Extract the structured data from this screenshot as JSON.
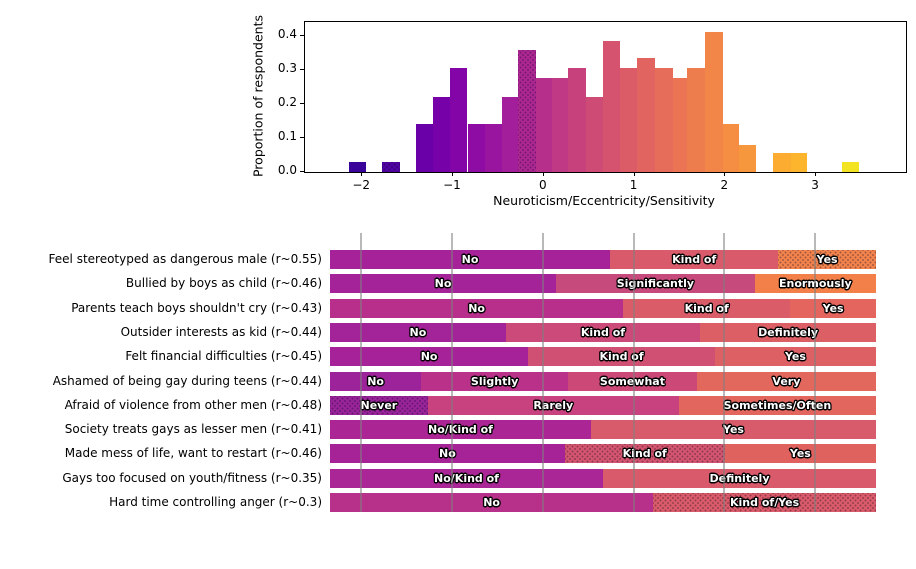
{
  "chart_data": [
    {
      "type": "bar",
      "subtype": "histogram",
      "title": "",
      "xlabel": "Neuroticism/Eccentricity/Sensitivity",
      "ylabel": "Proportion of respondents",
      "xlim": [
        -2.63,
        3.99
      ],
      "ylim": [
        0,
        0.44
      ],
      "grid": false,
      "xticks": [
        {
          "value": -2,
          "label": "−2"
        },
        {
          "value": -1,
          "label": "−1"
        },
        {
          "value": 0,
          "label": "0"
        },
        {
          "value": 1,
          "label": "1"
        },
        {
          "value": 2,
          "label": "2"
        },
        {
          "value": 3,
          "label": "3"
        }
      ],
      "yticks": [
        {
          "value": 0.0,
          "label": "0.0"
        },
        {
          "value": 0.1,
          "label": "0.1"
        },
        {
          "value": 0.2,
          "label": "0.2"
        },
        {
          "value": 0.3,
          "label": "0.3"
        },
        {
          "value": 0.4,
          "label": "0.4"
        }
      ],
      "bins": [
        {
          "from": -2.15,
          "to": -1.96,
          "value": 0.028,
          "color": "#3a049a",
          "hatched": false
        },
        {
          "from": -1.78,
          "to": -1.58,
          "value": 0.028,
          "color": "#5002a2",
          "hatched": true
        },
        {
          "from": -1.41,
          "to": -1.22,
          "value": 0.14,
          "color": "#6a00a8",
          "hatched": false
        },
        {
          "from": -1.22,
          "to": -1.03,
          "value": 0.22,
          "color": "#7701a8",
          "hatched": false
        },
        {
          "from": -1.03,
          "to": -0.84,
          "value": 0.305,
          "color": "#8305a7",
          "hatched": false
        },
        {
          "from": -0.84,
          "to": -0.65,
          "value": 0.14,
          "color": "#8e0ca4",
          "hatched": false
        },
        {
          "from": -0.65,
          "to": -0.46,
          "value": 0.14,
          "color": "#99159f",
          "hatched": false
        },
        {
          "from": -0.46,
          "to": -0.28,
          "value": 0.22,
          "color": "#a31e9a",
          "hatched": false
        },
        {
          "from": -0.28,
          "to": -0.09,
          "value": 0.358,
          "color": "#ad2793",
          "hatched": true
        },
        {
          "from": -0.09,
          "to": 0.09,
          "value": 0.275,
          "color": "#b6308b",
          "hatched": false
        },
        {
          "from": 0.09,
          "to": 0.27,
          "value": 0.275,
          "color": "#bf3984",
          "hatched": false
        },
        {
          "from": 0.27,
          "to": 0.46,
          "value": 0.305,
          "color": "#c7427c",
          "hatched": false
        },
        {
          "from": 0.46,
          "to": 0.65,
          "value": 0.22,
          "color": "#ce4b75",
          "hatched": false
        },
        {
          "from": 0.65,
          "to": 0.84,
          "value": 0.385,
          "color": "#d5536e",
          "hatched": false
        },
        {
          "from": 0.84,
          "to": 1.03,
          "value": 0.305,
          "color": "#db5c67",
          "hatched": false
        },
        {
          "from": 1.03,
          "to": 1.23,
          "value": 0.333,
          "color": "#e16460",
          "hatched": false
        },
        {
          "from": 1.23,
          "to": 1.42,
          "value": 0.305,
          "color": "#e66d59",
          "hatched": false
        },
        {
          "from": 1.42,
          "to": 1.58,
          "value": 0.275,
          "color": "#ea7453",
          "hatched": false
        },
        {
          "from": 1.58,
          "to": 1.78,
          "value": 0.305,
          "color": "#ee7d4e",
          "hatched": false
        },
        {
          "from": 1.78,
          "to": 1.97,
          "value": 0.41,
          "color": "#f28548",
          "hatched": false
        },
        {
          "from": 1.97,
          "to": 2.15,
          "value": 0.14,
          "color": "#f58e42",
          "hatched": false
        },
        {
          "from": 2.15,
          "to": 2.34,
          "value": 0.08,
          "color": "#f7973d",
          "hatched": false
        },
        {
          "from": 2.53,
          "to": 2.72,
          "value": 0.055,
          "color": "#fbac31",
          "hatched": false
        },
        {
          "from": 2.72,
          "to": 2.9,
          "value": 0.055,
          "color": "#fcb52d",
          "hatched": false
        },
        {
          "from": 3.28,
          "to": 3.47,
          "value": 0.028,
          "color": "#f3e423",
          "hatched": false
        }
      ]
    },
    {
      "type": "stacked-bar-horizontal",
      "gridlines": [
        -2,
        -1,
        0,
        1,
        2,
        3
      ],
      "rows": [
        {
          "label": "Feel stereotyped as dangerous male (r~0.55)",
          "segments": [
            {
              "text": "No",
              "pct": 51.3,
              "color": "#a62298",
              "hatched": false
            },
            {
              "text": "Kind of",
              "pct": 30.8,
              "color": "#d95a6a",
              "hatched": false
            },
            {
              "text": "Yes",
              "pct": 17.9,
              "color": "#f2834c",
              "hatched": true
            }
          ]
        },
        {
          "label": "Bullied by boys as child (r~0.46)",
          "segments": [
            {
              "text": "No",
              "pct": 41.4,
              "color": "#a42399",
              "hatched": false
            },
            {
              "text": "Significantly",
              "pct": 36.4,
              "color": "#c64a7c",
              "hatched": false
            },
            {
              "text": "Enormously",
              "pct": 22.2,
              "color": "#f28048",
              "hatched": false
            }
          ]
        },
        {
          "label": "Parents teach boys shouldn't cry (r~0.43)",
          "segments": [
            {
              "text": "No",
              "pct": 53.7,
              "color": "#b72f8a",
              "hatched": false
            },
            {
              "text": "Kind of",
              "pct": 30.6,
              "color": "#da5c68",
              "hatched": false
            },
            {
              "text": "Yes",
              "pct": 15.7,
              "color": "#e4645e",
              "hatched": false
            }
          ]
        },
        {
          "label": "Outsider interests as kid (r~0.44)",
          "segments": [
            {
              "text": "No",
              "pct": 32.2,
              "color": "#a32399",
              "hatched": false
            },
            {
              "text": "Kind of",
              "pct": 35.6,
              "color": "#cb4a79",
              "hatched": false
            },
            {
              "text": "Definitely",
              "pct": 32.2,
              "color": "#dd5f66",
              "hatched": false
            }
          ]
        },
        {
          "label": "Felt financial difficulties (r~0.45)",
          "segments": [
            {
              "text": "No",
              "pct": 36.3,
              "color": "#a62298",
              "hatched": false
            },
            {
              "text": "Kind of",
              "pct": 34.2,
              "color": "#cf5072",
              "hatched": false
            },
            {
              "text": "Yes",
              "pct": 29.5,
              "color": "#dd6065",
              "hatched": false
            }
          ]
        },
        {
          "label": "Ashamed of being gay during teens (r~0.44)",
          "segments": [
            {
              "text": "No",
              "pct": 16.7,
              "color": "#9c2399",
              "hatched": false
            },
            {
              "text": "Slightly",
              "pct": 26.9,
              "color": "#b93189",
              "hatched": false
            },
            {
              "text": "Somewhat",
              "pct": 23.6,
              "color": "#cc4877",
              "hatched": false
            },
            {
              "text": "Very",
              "pct": 32.8,
              "color": "#e2675d",
              "hatched": false
            }
          ]
        },
        {
          "label": "Afraid of violence from other men (r~0.48)",
          "segments": [
            {
              "text": "Never",
              "pct": 17.9,
              "color": "#992399",
              "hatched": true
            },
            {
              "text": "Rarely",
              "pct": 46.0,
              "color": "#c8427f",
              "hatched": false
            },
            {
              "text": "Sometimes/Often",
              "pct": 36.1,
              "color": "#e2655e",
              "hatched": false
            }
          ]
        },
        {
          "label": "Society treats gays as lesser men (r~0.41)",
          "segments": [
            {
              "text": "No/Kind of",
              "pct": 47.8,
              "color": "#ab2694",
              "hatched": false
            },
            {
              "text": "Yes",
              "pct": 52.2,
              "color": "#d85b6b",
              "hatched": false
            }
          ]
        },
        {
          "label": "Made mess of life, want to restart (r~0.46)",
          "segments": [
            {
              "text": "No",
              "pct": 43.0,
              "color": "#a62297",
              "hatched": false
            },
            {
              "text": "Kind of",
              "pct": 29.3,
              "color": "#d4556f",
              "hatched": true
            },
            {
              "text": "Yes",
              "pct": 27.7,
              "color": "#e0625f",
              "hatched": false
            }
          ]
        },
        {
          "label": "Gays too focused on youth/fitness (r~0.35)",
          "segments": [
            {
              "text": "No/Kind of",
              "pct": 50.0,
              "color": "#aa2595",
              "hatched": false
            },
            {
              "text": "Definitely",
              "pct": 50.0,
              "color": "#d95a6b",
              "hatched": false
            }
          ]
        },
        {
          "label": "Hard time controlling anger (r~0.3)",
          "segments": [
            {
              "text": "No",
              "pct": 59.2,
              "color": "#b73089",
              "hatched": false
            },
            {
              "text": "Kind of/Yes",
              "pct": 40.8,
              "color": "#da5b69",
              "hatched": true
            }
          ]
        }
      ]
    }
  ]
}
